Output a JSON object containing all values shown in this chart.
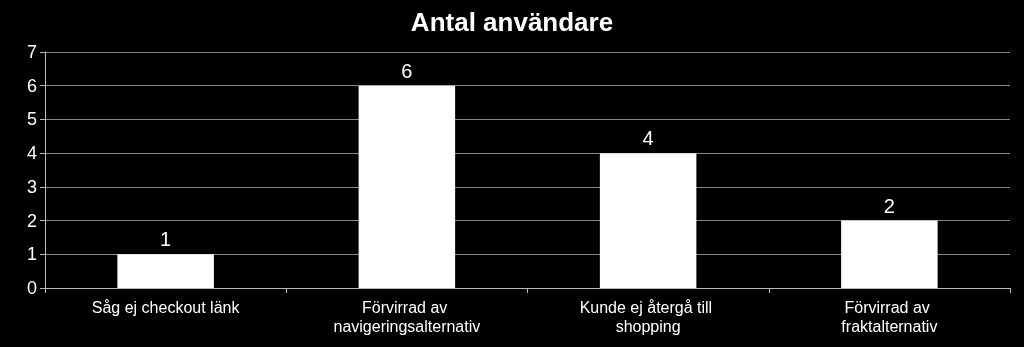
{
  "chart_data": {
    "type": "bar",
    "title": "Antal användare",
    "categories": [
      "Såg ej checkout länk",
      "Förvirrad av navigeringsalternativ",
      "Kunde ej återgå till shopping",
      "Förvirrad av fraktalternativ"
    ],
    "values": [
      1,
      6,
      4,
      2
    ],
    "color": "#ffffff",
    "ylim": [
      0,
      7
    ],
    "yticks": [
      0,
      1,
      2,
      3,
      4,
      5,
      6,
      7
    ],
    "grid": "y",
    "data_labels": true
  }
}
